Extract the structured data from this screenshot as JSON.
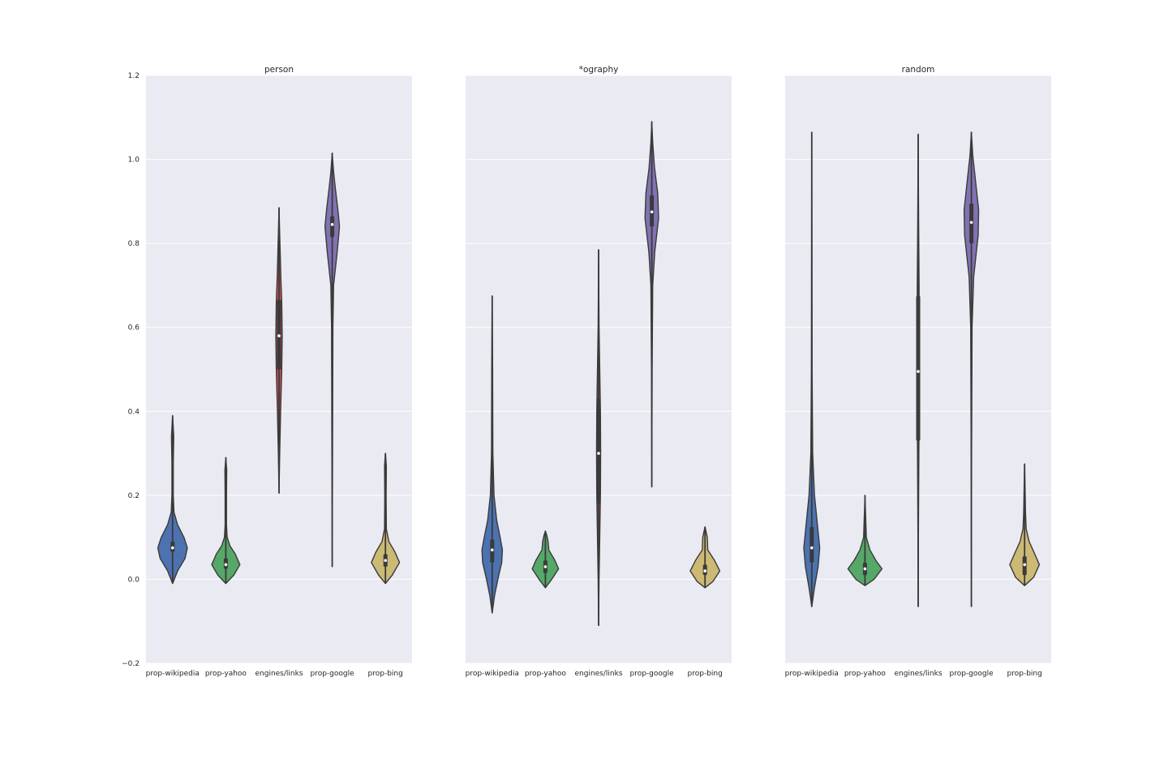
{
  "chart_data": {
    "type": "violin",
    "ylim": [
      -0.2,
      1.2
    ],
    "yticks": [
      "−0.2",
      "0.0",
      "0.2",
      "0.4",
      "0.6",
      "0.8",
      "1.0",
      "1.2"
    ],
    "ytick_values": [
      -0.2,
      0.0,
      0.2,
      0.4,
      0.6,
      0.8,
      1.0,
      1.2
    ],
    "grid": true,
    "shared_y": true,
    "categories": [
      "prop-wikipedia",
      "prop-yahoo",
      "engines/links",
      "prop-google",
      "prop-bing"
    ],
    "colors": [
      "#4C72B0",
      "#55A868",
      "#C44E52",
      "#8172B2",
      "#CCB974"
    ],
    "panels": [
      {
        "title": "person",
        "violins": [
          {
            "category": "prop-wikipedia",
            "min": -0.01,
            "max": 0.39,
            "q1": 0.065,
            "median": 0.075,
            "q3": 0.09,
            "profile": [
              [
                -0.01,
                0
              ],
              [
                0.02,
                0.22
              ],
              [
                0.05,
                0.55
              ],
              [
                0.075,
                0.65
              ],
              [
                0.1,
                0.5
              ],
              [
                0.13,
                0.22
              ],
              [
                0.16,
                0.06
              ],
              [
                0.2,
                0.03
              ],
              [
                0.28,
                0.03
              ],
              [
                0.34,
                0.05
              ],
              [
                0.39,
                0
              ]
            ]
          },
          {
            "category": "prop-yahoo",
            "min": -0.01,
            "max": 0.29,
            "q1": 0.025,
            "median": 0.035,
            "q3": 0.05,
            "profile": [
              [
                -0.01,
                0
              ],
              [
                0.01,
                0.35
              ],
              [
                0.035,
                0.62
              ],
              [
                0.06,
                0.42
              ],
              [
                0.08,
                0.18
              ],
              [
                0.1,
                0.06
              ],
              [
                0.13,
                0.03
              ],
              [
                0.2,
                0.03
              ],
              [
                0.26,
                0.04
              ],
              [
                0.29,
                0
              ]
            ]
          },
          {
            "category": "engines/links",
            "min": 0.205,
            "max": 0.885,
            "q1": 0.5,
            "median": 0.58,
            "q3": 0.665,
            "profile": [
              [
                0.205,
                0
              ],
              [
                0.3,
                0.03
              ],
              [
                0.4,
                0.07
              ],
              [
                0.5,
                0.12
              ],
              [
                0.58,
                0.14
              ],
              [
                0.66,
                0.12
              ],
              [
                0.72,
                0.08
              ],
              [
                0.8,
                0.04
              ],
              [
                0.885,
                0
              ]
            ]
          },
          {
            "category": "prop-google",
            "min": 0.03,
            "max": 1.015,
            "q1": 0.815,
            "median": 0.845,
            "q3": 0.865,
            "profile": [
              [
                0.03,
                0
              ],
              [
                0.3,
                0.015
              ],
              [
                0.6,
                0.03
              ],
              [
                0.7,
                0.06
              ],
              [
                0.78,
                0.22
              ],
              [
                0.84,
                0.32
              ],
              [
                0.88,
                0.25
              ],
              [
                0.93,
                0.14
              ],
              [
                0.97,
                0.06
              ],
              [
                1.015,
                0
              ]
            ]
          },
          {
            "category": "prop-bing",
            "min": -0.01,
            "max": 0.3,
            "q1": 0.03,
            "median": 0.045,
            "q3": 0.06,
            "profile": [
              [
                -0.01,
                0
              ],
              [
                0.01,
                0.3
              ],
              [
                0.04,
                0.62
              ],
              [
                0.065,
                0.42
              ],
              [
                0.09,
                0.15
              ],
              [
                0.12,
                0.04
              ],
              [
                0.2,
                0.03
              ],
              [
                0.27,
                0.04
              ],
              [
                0.3,
                0
              ]
            ]
          }
        ]
      },
      {
        "title": "*ography",
        "violins": [
          {
            "category": "prop-wikipedia",
            "min": -0.08,
            "max": 0.675,
            "q1": 0.04,
            "median": 0.07,
            "q3": 0.095,
            "profile": [
              [
                -0.08,
                0
              ],
              [
                -0.04,
                0.1
              ],
              [
                0.0,
                0.25
              ],
              [
                0.04,
                0.42
              ],
              [
                0.07,
                0.45
              ],
              [
                0.1,
                0.35
              ],
              [
                0.14,
                0.2
              ],
              [
                0.2,
                0.08
              ],
              [
                0.3,
                0.03
              ],
              [
                0.5,
                0.02
              ],
              [
                0.675,
                0
              ]
            ]
          },
          {
            "category": "prop-yahoo",
            "min": -0.02,
            "max": 0.115,
            "q1": 0.015,
            "median": 0.03,
            "q3": 0.045,
            "profile": [
              [
                -0.02,
                0
              ],
              [
                0.0,
                0.28
              ],
              [
                0.025,
                0.58
              ],
              [
                0.045,
                0.42
              ],
              [
                0.07,
                0.15
              ],
              [
                0.09,
                0.12
              ],
              [
                0.105,
                0.06
              ],
              [
                0.115,
                0
              ]
            ]
          },
          {
            "category": "engines/links",
            "min": -0.11,
            "max": 0.785,
            "q1": 0.18,
            "median": 0.3,
            "q3": 0.43,
            "profile": [
              [
                -0.11,
                0
              ],
              [
                0.0,
                0.02
              ],
              [
                0.1,
                0.05
              ],
              [
                0.2,
                0.08
              ],
              [
                0.3,
                0.09
              ],
              [
                0.4,
                0.08
              ],
              [
                0.5,
                0.05
              ],
              [
                0.6,
                0.02
              ],
              [
                0.785,
                0
              ]
            ]
          },
          {
            "category": "prop-google",
            "min": 0.22,
            "max": 1.09,
            "q1": 0.84,
            "median": 0.875,
            "q3": 0.915,
            "profile": [
              [
                0.22,
                0
              ],
              [
                0.5,
                0.015
              ],
              [
                0.7,
                0.04
              ],
              [
                0.78,
                0.13
              ],
              [
                0.86,
                0.3
              ],
              [
                0.92,
                0.26
              ],
              [
                0.98,
                0.12
              ],
              [
                1.04,
                0.04
              ],
              [
                1.09,
                0
              ]
            ]
          },
          {
            "category": "prop-bing",
            "min": -0.02,
            "max": 0.125,
            "q1": 0.01,
            "median": 0.02,
            "q3": 0.035,
            "profile": [
              [
                -0.02,
                0
              ],
              [
                -0.005,
                0.35
              ],
              [
                0.02,
                0.65
              ],
              [
                0.045,
                0.42
              ],
              [
                0.07,
                0.12
              ],
              [
                0.1,
                0.1
              ],
              [
                0.125,
                0
              ]
            ]
          }
        ]
      },
      {
        "title": "random",
        "violins": [
          {
            "category": "prop-wikipedia",
            "min": -0.065,
            "max": 1.065,
            "q1": 0.04,
            "median": 0.075,
            "q3": 0.125,
            "profile": [
              [
                -0.065,
                0
              ],
              [
                -0.02,
                0.12
              ],
              [
                0.03,
                0.28
              ],
              [
                0.075,
                0.35
              ],
              [
                0.13,
                0.25
              ],
              [
                0.2,
                0.12
              ],
              [
                0.3,
                0.04
              ],
              [
                0.5,
                0.015
              ],
              [
                1.065,
                0
              ]
            ]
          },
          {
            "category": "prop-yahoo",
            "min": -0.015,
            "max": 0.2,
            "q1": 0.01,
            "median": 0.025,
            "q3": 0.04,
            "profile": [
              [
                -0.015,
                0
              ],
              [
                0.0,
                0.4
              ],
              [
                0.025,
                0.75
              ],
              [
                0.045,
                0.48
              ],
              [
                0.07,
                0.22
              ],
              [
                0.1,
                0.06
              ],
              [
                0.15,
                0.03
              ],
              [
                0.2,
                0
              ]
            ]
          },
          {
            "category": "engines/links",
            "min": -0.065,
            "max": 1.06,
            "q1": 0.33,
            "median": 0.495,
            "q3": 0.675,
            "profile": [
              [
                -0.065,
                0
              ],
              [
                0.1,
                0.01
              ],
              [
                0.3,
                0.03
              ],
              [
                0.5,
                0.05
              ],
              [
                0.7,
                0.04
              ],
              [
                0.85,
                0.02
              ],
              [
                1.06,
                0
              ]
            ]
          },
          {
            "category": "prop-google",
            "min": -0.065,
            "max": 1.065,
            "q1": 0.8,
            "median": 0.85,
            "q3": 0.895,
            "profile": [
              [
                -0.065,
                0
              ],
              [
                0.3,
                0.01
              ],
              [
                0.6,
                0.03
              ],
              [
                0.72,
                0.1
              ],
              [
                0.82,
                0.3
              ],
              [
                0.88,
                0.32
              ],
              [
                0.95,
                0.18
              ],
              [
                1.01,
                0.06
              ],
              [
                1.065,
                0
              ]
            ]
          },
          {
            "category": "prop-bing",
            "min": -0.015,
            "max": 0.275,
            "q1": 0.01,
            "median": 0.035,
            "q3": 0.055,
            "profile": [
              [
                -0.015,
                0
              ],
              [
                0.005,
                0.4
              ],
              [
                0.035,
                0.65
              ],
              [
                0.06,
                0.45
              ],
              [
                0.09,
                0.2
              ],
              [
                0.12,
                0.07
              ],
              [
                0.16,
                0.04
              ],
              [
                0.22,
                0.02
              ],
              [
                0.275,
                0
              ]
            ]
          }
        ]
      }
    ]
  }
}
